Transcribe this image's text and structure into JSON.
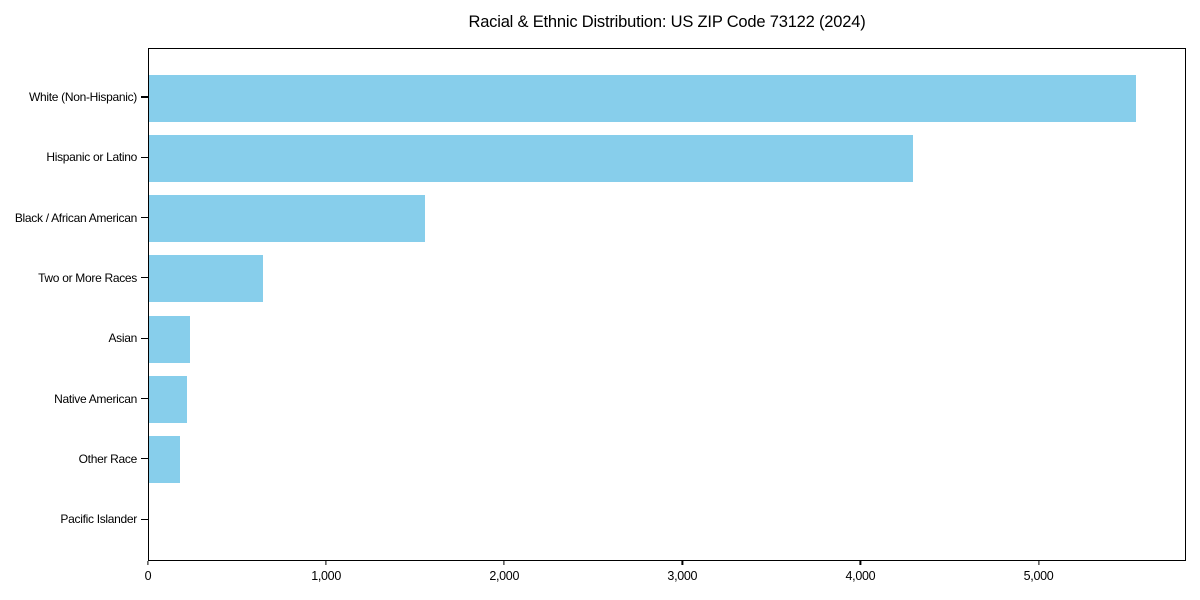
{
  "chart_data": {
    "type": "bar",
    "orientation": "horizontal",
    "title": "Racial & Ethnic Distribution: US ZIP Code 73122 (2024)",
    "categories": [
      "White (Non-Hispanic)",
      "Hispanic or Latino",
      "Black / African American",
      "Two or More Races",
      "Asian",
      "Native American",
      "Other Race",
      "Pacific Islander"
    ],
    "values": [
      5550,
      4300,
      1550,
      640,
      230,
      215,
      175,
      0
    ],
    "xlabel": "",
    "ylabel": "",
    "xlim": [
      0,
      5828
    ],
    "x_ticks": [
      0,
      1000,
      2000,
      3000,
      4000,
      5000
    ],
    "x_tick_labels": [
      "0",
      "1,000",
      "2,000",
      "3,000",
      "4,000",
      "5,000"
    ],
    "bar_color": "#87CEEB",
    "axis_color": "#000000",
    "text_color": "#000000",
    "background_color": "#ffffff",
    "grid": false,
    "legend": null
  }
}
